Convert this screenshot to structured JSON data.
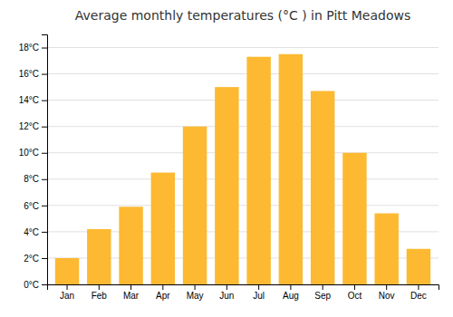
{
  "chart_data": {
    "type": "bar",
    "title": "Average monthly temperatures (°C ) in Pitt Meadows",
    "categories": [
      "Jan",
      "Feb",
      "Mar",
      "Apr",
      "May",
      "Jun",
      "Jul",
      "Aug",
      "Sep",
      "Oct",
      "Nov",
      "Dec"
    ],
    "values": [
      2.0,
      4.2,
      5.9,
      8.5,
      12.0,
      15.0,
      17.3,
      17.5,
      14.7,
      10.0,
      5.4,
      2.7
    ],
    "color": "#FDB931",
    "ylim": [
      0,
      19
    ],
    "yticks": [
      {
        "value": 0,
        "label": "0°C"
      },
      {
        "value": 2,
        "label": "2°C"
      },
      {
        "value": 4,
        "label": "4°C"
      },
      {
        "value": 6,
        "label": "6°C"
      },
      {
        "value": 8,
        "label": "8°C"
      },
      {
        "value": 10,
        "label": "10°C"
      },
      {
        "value": 12,
        "label": "12°C"
      },
      {
        "value": 14,
        "label": "14°C"
      },
      {
        "value": 16,
        "label": "16°C"
      },
      {
        "value": 18,
        "label": "18°C"
      }
    ],
    "grid": true
  }
}
